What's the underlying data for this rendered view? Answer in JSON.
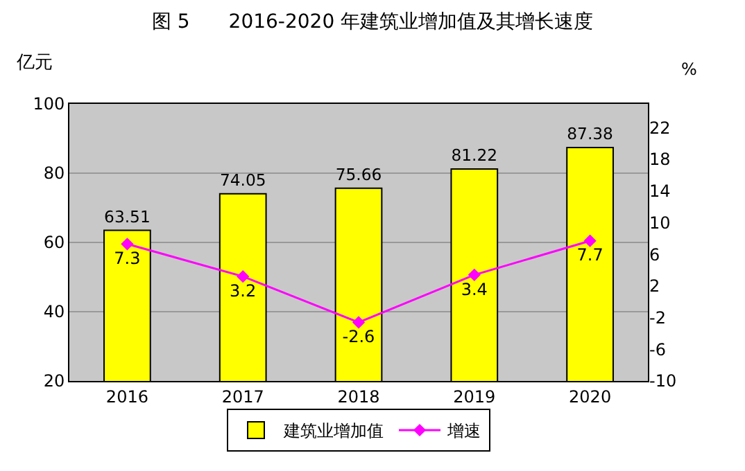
{
  "chart_data": {
    "type": "bar",
    "title": "图 5　　2016-2020 年建筑业增加值及其增长速度",
    "ylabel": "亿元",
    "y2label": "%",
    "categories": [
      "2016",
      "2017",
      "2018",
      "2019",
      "2020"
    ],
    "series": [
      {
        "name": "建筑业增加值",
        "color": "#ffff00",
        "values": [
          63.51,
          74.05,
          75.66,
          81.22,
          87.38
        ]
      },
      {
        "name": "增速",
        "type": "line",
        "axis": "y2",
        "color": "#ff00ff",
        "marker": "diamond",
        "values": [
          7.3,
          3.2,
          -2.6,
          3.4,
          7.7
        ]
      }
    ],
    "ylim": [
      20,
      100
    ],
    "yticks": [
      20,
      40,
      60,
      80,
      100
    ],
    "y2lim": [
      -10,
      25
    ],
    "y2ticks": [
      -10,
      -6,
      -2,
      2,
      6,
      10,
      14,
      18,
      22
    ],
    "data_labels": true,
    "grid": "y",
    "legend": "bottom"
  }
}
